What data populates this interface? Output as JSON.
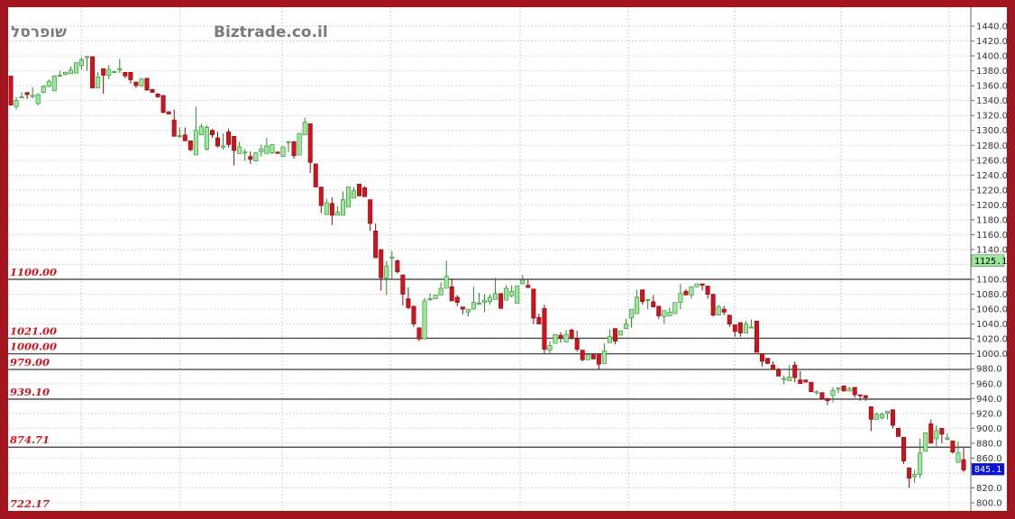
{
  "chart_data": {
    "type": "candlestick",
    "title": "",
    "symbol_watermark": "שופרסל",
    "site_watermark": "Biztrade.co.il",
    "ylim": [
      800,
      1440
    ],
    "y_ticks": [
      "1440.0",
      "1420.0",
      "1400.0",
      "1380.0",
      "1360.0",
      "1340.0",
      "1320.0",
      "1300.0",
      "1280.0",
      "1260.0",
      "1240.0",
      "1220.0",
      "1200.0",
      "1180.0",
      "1160.0",
      "1140.0",
      "1100.0",
      "1080.0",
      "1060.0",
      "1040.0",
      "1020.0",
      "1000.0",
      "980.0",
      "960.0",
      "940.0",
      "920.0",
      "900.0",
      "880.0",
      "860.0",
      "820.0",
      "800.0"
    ],
    "grid": true,
    "price_markers": [
      {
        "label": "1125.1",
        "value": 1125.1,
        "color": "#9be89b",
        "text_color": "#000000"
      },
      {
        "label": "845.1",
        "value": 845.1,
        "color": "#0a14d8",
        "text_color": "#ffffff"
      }
    ],
    "levels": [
      {
        "label": "1100.00",
        "value": 1100
      },
      {
        "label": "1021.00",
        "value": 1021
      },
      {
        "label": "1000.00",
        "value": 1000
      },
      {
        "label": "979.00",
        "value": 979
      },
      {
        "label": "939.10",
        "value": 939.1
      },
      {
        "label": "874.71",
        "value": 874.71
      },
      {
        "label": "722.17",
        "value": 722.17
      }
    ],
    "colors": {
      "up": "#9be89b",
      "up_border": "#2a8a2a",
      "down": "#d0141e",
      "down_border": "#8a0a10",
      "frame": "#a3161f",
      "level_label": "#d0141e"
    },
    "ohlc_fields": [
      "open",
      "high",
      "low",
      "close"
    ],
    "candles": [
      [
        1373,
        1373,
        1334,
        1334
      ],
      [
        1332,
        1345,
        1328,
        1340
      ],
      [
        1345,
        1351,
        1344,
        1345
      ],
      [
        1351,
        1351,
        1342,
        1348
      ],
      [
        1347,
        1358,
        1343,
        1347
      ],
      [
        1336,
        1350,
        1334,
        1348
      ],
      [
        1351,
        1361,
        1350,
        1359
      ],
      [
        1359,
        1368,
        1358,
        1366
      ],
      [
        1353,
        1374,
        1353,
        1373
      ],
      [
        1374,
        1380,
        1372,
        1374
      ],
      [
        1375,
        1379,
        1374,
        1378
      ],
      [
        1376,
        1386,
        1376,
        1381
      ],
      [
        1377,
        1391,
        1377,
        1391
      ],
      [
        1387,
        1398,
        1382,
        1395
      ],
      [
        1399,
        1400,
        1380,
        1399
      ],
      [
        1399,
        1399,
        1357,
        1357
      ],
      [
        1357,
        1378,
        1357,
        1372
      ],
      [
        1383,
        1383,
        1349,
        1374
      ],
      [
        1374,
        1388,
        1369,
        1382
      ],
      [
        1379,
        1380,
        1378,
        1379
      ],
      [
        1383,
        1396,
        1377,
        1383
      ],
      [
        1378,
        1378,
        1370,
        1373
      ],
      [
        1378,
        1378,
        1363,
        1368
      ],
      [
        1365,
        1365,
        1357,
        1360
      ],
      [
        1360,
        1370,
        1358,
        1369
      ],
      [
        1370,
        1370,
        1354,
        1354
      ],
      [
        1355,
        1356,
        1351,
        1351
      ],
      [
        1349,
        1350,
        1344,
        1345
      ],
      [
        1347,
        1347,
        1323,
        1324
      ],
      [
        1325,
        1326,
        1322,
        1322
      ],
      [
        1314,
        1328,
        1292,
        1292
      ],
      [
        1293,
        1304,
        1290,
        1293
      ],
      [
        1294,
        1304,
        1286,
        1286
      ],
      [
        1286,
        1286,
        1272,
        1274
      ],
      [
        1267,
        1332,
        1267,
        1300
      ],
      [
        1294,
        1309,
        1294,
        1305
      ],
      [
        1275,
        1307,
        1273,
        1304
      ],
      [
        1300,
        1302,
        1290,
        1294
      ],
      [
        1290,
        1298,
        1277,
        1279
      ],
      [
        1279,
        1296,
        1274,
        1279
      ],
      [
        1298,
        1302,
        1277,
        1281
      ],
      [
        1292,
        1292,
        1253,
        1273
      ],
      [
        1269,
        1285,
        1269,
        1278
      ],
      [
        1271,
        1275,
        1259,
        1271
      ],
      [
        1265,
        1272,
        1255,
        1261
      ],
      [
        1259,
        1270,
        1259,
        1270
      ],
      [
        1271,
        1281,
        1265,
        1275
      ],
      [
        1269,
        1290,
        1269,
        1279
      ],
      [
        1270,
        1281,
        1268,
        1281
      ],
      [
        1271,
        1271,
        1269,
        1269
      ],
      [
        1265,
        1278,
        1265,
        1278
      ],
      [
        1285,
        1286,
        1271,
        1285
      ],
      [
        1285,
        1285,
        1262,
        1266
      ],
      [
        1267,
        1296,
        1267,
        1296
      ],
      [
        1294,
        1317,
        1294,
        1311
      ],
      [
        1309,
        1309,
        1243,
        1257
      ],
      [
        1255,
        1255,
        1224,
        1224
      ],
      [
        1224,
        1224,
        1189,
        1199
      ],
      [
        1187,
        1208,
        1187,
        1203
      ],
      [
        1202,
        1210,
        1173,
        1186
      ],
      [
        1186,
        1198,
        1186,
        1190
      ],
      [
        1186,
        1218,
        1186,
        1207
      ],
      [
        1197,
        1224,
        1197,
        1224
      ],
      [
        1209,
        1224,
        1209,
        1219
      ],
      [
        1228,
        1228,
        1212,
        1212
      ],
      [
        1223,
        1225,
        1211,
        1211
      ],
      [
        1207,
        1207,
        1165,
        1175
      ],
      [
        1165,
        1175,
        1129,
        1129
      ],
      [
        1140,
        1140,
        1085,
        1102
      ],
      [
        1102,
        1125,
        1079,
        1118
      ],
      [
        1130,
        1138,
        1100,
        1130
      ],
      [
        1125,
        1127,
        1108,
        1110
      ],
      [
        1106,
        1106,
        1065,
        1080
      ],
      [
        1074,
        1089,
        1060,
        1062
      ],
      [
        1064,
        1064,
        1036,
        1040
      ],
      [
        1035,
        1035,
        1017,
        1020
      ],
      [
        1020,
        1075,
        1020,
        1071
      ],
      [
        1074,
        1081,
        1071,
        1074
      ],
      [
        1074,
        1079,
        1074,
        1079
      ],
      [
        1079,
        1096,
        1079,
        1088
      ],
      [
        1088,
        1125,
        1088,
        1104
      ],
      [
        1090,
        1101,
        1071,
        1071
      ],
      [
        1076,
        1079,
        1064,
        1069
      ],
      [
        1063,
        1063,
        1053,
        1060
      ],
      [
        1056,
        1060,
        1050,
        1060
      ],
      [
        1060,
        1090,
        1060,
        1069
      ],
      [
        1068,
        1082,
        1066,
        1068
      ],
      [
        1069,
        1080,
        1056,
        1072
      ],
      [
        1070,
        1080,
        1066,
        1076
      ],
      [
        1073,
        1102,
        1073,
        1081
      ],
      [
        1081,
        1081,
        1061,
        1061
      ],
      [
        1072,
        1092,
        1072,
        1088
      ],
      [
        1078,
        1092,
        1076,
        1084
      ],
      [
        1068,
        1091,
        1068,
        1091
      ],
      [
        1094,
        1106,
        1094,
        1099
      ],
      [
        1092,
        1101,
        1089,
        1089
      ],
      [
        1087,
        1087,
        1040,
        1048
      ],
      [
        1049,
        1054,
        1040,
        1040
      ],
      [
        1061,
        1066,
        1000,
        1006
      ],
      [
        1005,
        1017,
        1000,
        1011
      ],
      [
        1014,
        1026,
        1014,
        1026
      ],
      [
        1025,
        1029,
        1015,
        1022
      ],
      [
        1016,
        1032,
        1016,
        1026
      ],
      [
        1032,
        1034,
        1019,
        1021
      ],
      [
        1020,
        1031,
        1003,
        1006
      ],
      [
        1005,
        1005,
        990,
        992
      ],
      [
        992,
        999,
        992,
        999
      ],
      [
        999,
        999,
        993,
        993
      ],
      [
        999,
        999,
        979,
        986
      ],
      [
        987,
        1014,
        987,
        1004
      ],
      [
        1015,
        1033,
        1015,
        1023
      ],
      [
        1034,
        1034,
        1013,
        1017
      ],
      [
        1025,
        1031,
        1025,
        1031
      ],
      [
        1034,
        1047,
        1034,
        1040
      ],
      [
        1048,
        1060,
        1035,
        1060
      ],
      [
        1054,
        1086,
        1054,
        1076
      ],
      [
        1086,
        1086,
        1066,
        1070
      ],
      [
        1073,
        1074,
        1060,
        1073
      ],
      [
        1070,
        1079,
        1062,
        1063
      ],
      [
        1064,
        1064,
        1047,
        1051
      ],
      [
        1050,
        1058,
        1040,
        1058
      ],
      [
        1051,
        1062,
        1051,
        1056
      ],
      [
        1054,
        1069,
        1054,
        1069
      ],
      [
        1069,
        1094,
        1060,
        1081
      ],
      [
        1084,
        1087,
        1079,
        1079
      ],
      [
        1079,
        1090,
        1074,
        1090
      ],
      [
        1090,
        1094,
        1090,
        1094
      ],
      [
        1094,
        1094,
        1085,
        1092
      ],
      [
        1091,
        1091,
        1074,
        1080
      ],
      [
        1080,
        1080,
        1050,
        1052
      ],
      [
        1052,
        1066,
        1052,
        1063
      ],
      [
        1060,
        1064,
        1052,
        1056
      ],
      [
        1052,
        1052,
        1036,
        1040
      ],
      [
        1039,
        1039,
        1023,
        1030
      ],
      [
        1042,
        1042,
        1023,
        1028
      ],
      [
        1028,
        1044,
        1028,
        1040
      ],
      [
        1036,
        1046,
        1036,
        1036
      ],
      [
        1044,
        1044,
        1002,
        1002
      ],
      [
        1000,
        1000,
        983,
        990
      ],
      [
        994,
        994,
        987,
        987
      ],
      [
        985,
        990,
        979,
        979
      ],
      [
        978,
        981,
        970,
        970
      ],
      [
        967,
        971,
        959,
        967
      ],
      [
        964,
        985,
        964,
        969
      ],
      [
        985,
        990,
        962,
        968
      ],
      [
        965,
        977,
        960,
        960
      ],
      [
        965,
        965,
        962,
        962
      ],
      [
        962,
        962,
        949,
        949
      ],
      [
        949,
        951,
        945,
        949
      ],
      [
        948,
        948,
        940,
        940
      ],
      [
        940,
        940,
        931,
        937
      ],
      [
        944,
        955,
        935,
        951
      ],
      [
        954,
        955,
        947,
        954
      ],
      [
        957,
        957,
        950,
        950
      ],
      [
        950,
        956,
        950,
        953
      ],
      [
        955,
        955,
        941,
        945
      ],
      [
        945,
        945,
        937,
        944
      ],
      [
        944,
        944,
        937,
        941
      ],
      [
        929,
        929,
        896,
        912
      ],
      [
        912,
        921,
        912,
        919
      ],
      [
        914,
        921,
        912,
        919
      ],
      [
        920,
        923,
        912,
        923
      ],
      [
        925,
        925,
        900,
        904
      ],
      [
        900,
        900,
        889,
        889
      ],
      [
        888,
        888,
        852,
        856
      ],
      [
        847,
        847,
        820,
        833
      ],
      [
        835,
        844,
        827,
        838
      ],
      [
        838,
        886,
        833,
        867
      ],
      [
        869,
        894,
        869,
        894
      ],
      [
        906,
        912,
        880,
        880
      ],
      [
        886,
        904,
        876,
        897
      ],
      [
        900,
        900,
        880,
        892
      ],
      [
        887,
        893,
        884,
        887
      ],
      [
        883,
        883,
        866,
        868
      ],
      [
        854,
        882,
        854,
        867
      ],
      [
        858,
        874,
        841,
        844
      ]
    ]
  }
}
